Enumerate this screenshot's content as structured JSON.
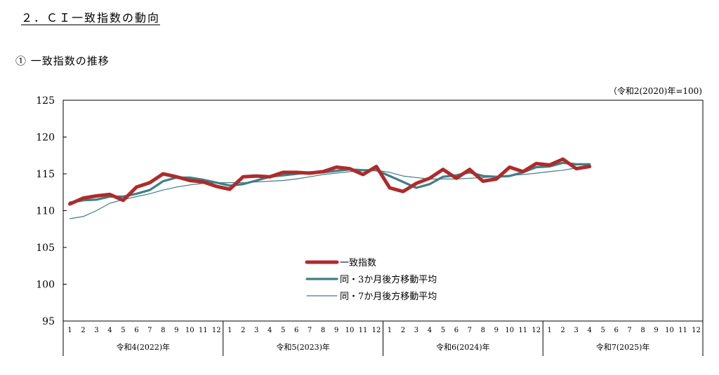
{
  "section_title": "２．ＣＩ一致指数の動向",
  "sub_title": "① 一致指数の推移",
  "chart_data": {
    "type": "line",
    "unit_note": "（令和2(2020)年=100)",
    "ylim": [
      95,
      125
    ],
    "yticks": [
      95,
      100,
      105,
      110,
      115,
      120,
      125
    ],
    "month_labels": [
      "1",
      "2",
      "3",
      "4",
      "5",
      "6",
      "7",
      "8",
      "9",
      "10",
      "11",
      "12"
    ],
    "year_groups": [
      {
        "label": "令和4(2022)年",
        "months": 12
      },
      {
        "label": "令和5(2023)年",
        "months": 12
      },
      {
        "label": "令和6(2024)年",
        "months": 12
      },
      {
        "label": "令和7(2025)年",
        "months": 12
      }
    ],
    "legend_placement": "center",
    "series": [
      {
        "name": "一致指数",
        "color": "#b02a2a",
        "values": [
          110.9,
          111.7,
          112.0,
          112.2,
          111.4,
          113.2,
          113.8,
          115.0,
          114.6,
          114.1,
          113.9,
          113.3,
          112.9,
          114.6,
          114.7,
          114.6,
          115.2,
          115.2,
          115.1,
          115.3,
          115.9,
          115.7,
          114.9,
          116.0,
          113.1,
          112.6,
          113.7,
          114.4,
          115.6,
          114.4,
          115.6,
          114.0,
          114.3,
          115.9,
          115.3,
          116.4,
          116.2,
          117.0,
          115.7,
          116.0
        ]
      },
      {
        "name": "同・3か月後方移動平均",
        "color": "#3f7f86",
        "values": [
          111.1,
          111.4,
          111.5,
          111.9,
          111.9,
          112.3,
          112.8,
          114.0,
          114.5,
          114.5,
          114.2,
          113.8,
          113.4,
          113.6,
          114.1,
          114.6,
          114.8,
          115.0,
          115.2,
          115.2,
          115.4,
          115.6,
          115.5,
          115.5,
          114.7,
          113.9,
          113.1,
          113.6,
          114.6,
          114.8,
          115.2,
          114.7,
          114.6,
          114.7,
          115.2,
          115.9,
          116.0,
          116.5,
          116.3,
          116.3
        ]
      },
      {
        "name": "同・7か月後方移動平均",
        "color": "#3f7f86",
        "values": [
          108.9,
          109.2,
          110.0,
          111.0,
          111.5,
          111.9,
          112.3,
          112.8,
          113.2,
          113.5,
          113.7,
          113.8,
          113.8,
          113.8,
          113.9,
          114.0,
          114.1,
          114.3,
          114.6,
          114.9,
          115.1,
          115.3,
          115.4,
          115.5,
          115.2,
          114.7,
          114.5,
          114.3,
          114.3,
          114.3,
          114.4,
          114.5,
          114.6,
          114.8,
          114.9,
          115.1,
          115.3,
          115.5,
          115.8,
          116.0
        ]
      }
    ]
  }
}
